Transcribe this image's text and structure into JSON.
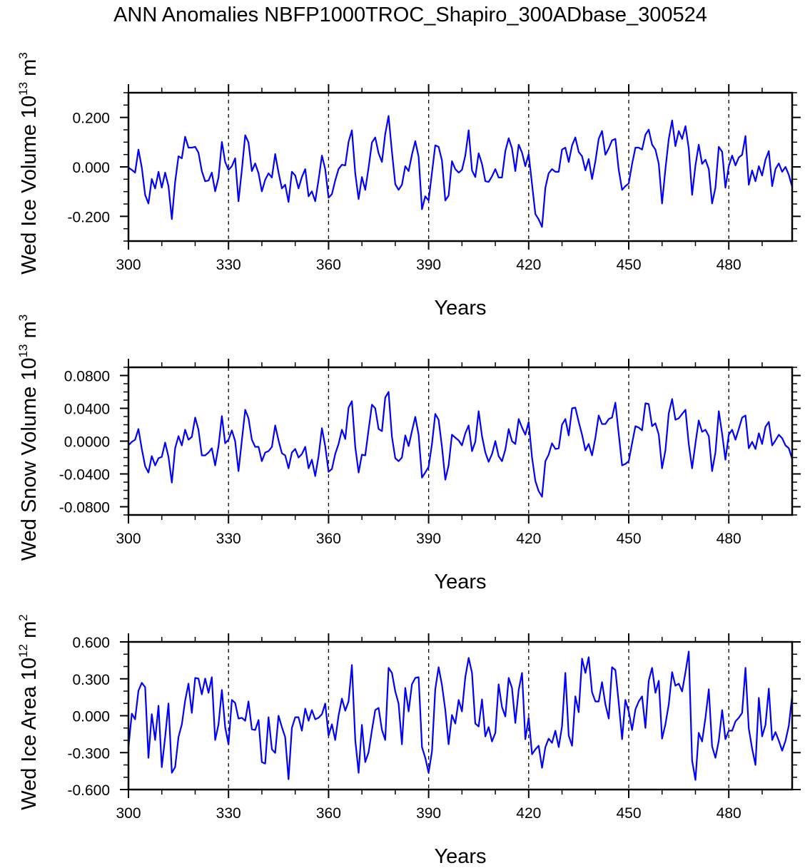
{
  "chart_data": [
    {
      "type": "line",
      "title": "ANN Anomalies NBFP1000TROC_Shapiro_300ADbase_300524",
      "xlabel": "Years",
      "ylabel": "Wed Ice Volume 10",
      "ylabel_exp": "13",
      "ylabel_unit": " m",
      "ylabel_unit_exp": "3",
      "xlim": [
        300,
        499
      ],
      "ylim": [
        -0.3,
        0.3
      ],
      "x_ticks": [
        300,
        330,
        360,
        390,
        420,
        450,
        480
      ],
      "x_tick_labels": [
        "300",
        "330",
        "360",
        "390",
        "420",
        "450",
        "480"
      ],
      "x_minor_step": 10,
      "y_ticks": [
        -0.2,
        0,
        0.2
      ],
      "y_tick_labels": [
        "-0.200",
        "0.000",
        "0.200"
      ],
      "y_minor_step": 0.05,
      "ref_lines_x": [
        330,
        360,
        390,
        420,
        450,
        480
      ],
      "line_color": "#0000ff",
      "x_start": 300,
      "values": [
        -0.003,
        -0.012,
        -0.023,
        0.07,
        -0.003,
        -0.113,
        -0.148,
        -0.049,
        -0.087,
        -0.02,
        -0.084,
        -0.023,
        -0.078,
        -0.211,
        -0.061,
        0.043,
        0.035,
        0.122,
        0.078,
        0.078,
        0.081,
        0.058,
        -0.017,
        -0.058,
        -0.055,
        -0.023,
        -0.099,
        -0.043,
        0.101,
        0.02,
        -0.012,
        0.003,
        0.035,
        -0.139,
        -0.012,
        0.128,
        0.099,
        -0.017,
        0.014,
        -0.026,
        -0.099,
        -0.052,
        -0.026,
        -0.043,
        0.052,
        -0.023,
        -0.087,
        -0.072,
        -0.142,
        -0.02,
        -0.035,
        -0.087,
        -0.041,
        -0.009,
        -0.119,
        -0.099,
        -0.139,
        -0.052,
        0.046,
        -0.009,
        -0.125,
        -0.11,
        -0.055,
        -0.009,
        0.009,
        0.006,
        0.101,
        0.148,
        -0.026,
        -0.13,
        -0.041,
        -0.093,
        -0.003,
        0.099,
        0.119,
        0.055,
        0.02,
        0.133,
        0.206,
        0.061,
        -0.07,
        -0.093,
        -0.072,
        0.003,
        -0.017,
        0.049,
        0.104,
        0.041,
        -0.171,
        -0.119,
        -0.136,
        -0.023,
        0.087,
        0.081,
        0.026,
        -0.136,
        -0.116,
        0.023,
        -0.009,
        -0.023,
        -0.012,
        0.046,
        0.148,
        -0.014,
        -0.041,
        0.055,
        0.012,
        -0.058,
        -0.061,
        -0.038,
        -0.009,
        -0.043,
        -0.043,
        0.064,
        0.116,
        0.075,
        -0.017,
        0.09,
        0.058,
        0.003,
        0.052,
        -0.07,
        -0.191,
        -0.212,
        -0.243,
        -0.084,
        -0.026,
        -0.009,
        -0.02,
        -0.02,
        0.07,
        0.078,
        0.02,
        0.087,
        0.119,
        0.061,
        0.043,
        -0.014,
        0.032,
        -0.049,
        0.023,
        0.113,
        0.145,
        0.049,
        0.075,
        0.107,
        0.113,
        -0.012,
        -0.093,
        -0.078,
        -0.067,
        0.012,
        0.078,
        0.078,
        0.07,
        0.13,
        0.151,
        0.09,
        0.07,
        0.012,
        -0.148,
        -0.009,
        0.113,
        0.188,
        0.084,
        0.145,
        0.113,
        0.165,
        0.075,
        -0.113,
        0.006,
        0.09,
        0.012,
        0.029,
        -0.009,
        -0.148,
        -0.084,
        0.081,
        0.061,
        -0.084,
        0.003,
        0.046,
        0.006,
        0.038,
        0.049,
        0.125,
        -0.072,
        -0.014,
        -0.058,
        0.003,
        -0.035,
        0.029,
        0.064,
        -0.078,
        -0.009,
        0.014,
        -0.02,
        0.0,
        -0.032,
        -0.081
      ]
    },
    {
      "type": "line",
      "xlabel": "Years",
      "ylabel": "Wed Snow Volume 10",
      "ylabel_exp": "13",
      "ylabel_unit": " m",
      "ylabel_unit_exp": "3",
      "xlim": [
        300,
        499
      ],
      "ylim": [
        -0.09,
        0.09
      ],
      "x_ticks": [
        300,
        330,
        360,
        390,
        420,
        450,
        480
      ],
      "x_tick_labels": [
        "300",
        "330",
        "360",
        "390",
        "420",
        "450",
        "480"
      ],
      "x_minor_step": 10,
      "y_ticks": [
        -0.08,
        -0.04,
        0,
        0.04,
        0.08
      ],
      "y_tick_labels": [
        "-0.0800",
        "-0.0400",
        "0.0000",
        "0.0400",
        "0.0800"
      ],
      "y_minor_step": 0.01,
      "ref_lines_x": [
        330,
        360,
        390,
        420,
        450,
        480
      ],
      "line_color": "#0000ff",
      "x_start": 300,
      "values": [
        -0.0052,
        -0.0009,
        0.0017,
        0.0148,
        -0.0096,
        -0.0305,
        -0.0383,
        -0.0183,
        -0.0296,
        -0.0209,
        -0.0191,
        -0.0017,
        -0.0191,
        -0.0505,
        -0.0087,
        0.0061,
        -0.0052,
        0.0139,
        0.0017,
        0.0052,
        0.0287,
        0.0139,
        -0.0174,
        -0.0174,
        -0.0139,
        -0.0087,
        -0.0296,
        -0.0061,
        0.0305,
        -0.0026,
        0.0017,
        0.0131,
        0.0,
        -0.0365,
        0.0009,
        0.0383,
        0.0278,
        0.0017,
        -0.007,
        -0.007,
        -0.0244,
        -0.0139,
        -0.0122,
        -0.007,
        0.0191,
        0.0009,
        -0.0148,
        -0.0174,
        -0.0331,
        -0.0139,
        -0.0096,
        -0.02,
        -0.0157,
        -0.007,
        -0.0331,
        -0.0226,
        -0.0426,
        -0.0183,
        0.0157,
        -0.0061,
        -0.0374,
        -0.0339,
        -0.0157,
        -0.0035,
        0.0139,
        0.0026,
        0.0409,
        0.0487,
        -0.007,
        -0.0383,
        -0.0165,
        -0.0174,
        0.0139,
        0.0444,
        0.04,
        0.0148,
        0.0122,
        0.0531,
        0.06,
        0.0052,
        -0.0209,
        -0.0244,
        -0.02,
        0.007,
        -0.0061,
        0.0122,
        0.0296,
        0.0078,
        -0.0444,
        -0.0383,
        -0.0313,
        -0.0035,
        0.0331,
        0.0261,
        -0.007,
        -0.047,
        -0.0296,
        0.0078,
        0.0043,
        0.0009,
        -0.0052,
        0.0096,
        0.0191,
        -0.0122,
        -0.0009,
        0.0365,
        0.0061,
        -0.0139,
        -0.0252,
        -0.0157,
        0.0,
        -0.0183,
        -0.0244,
        -0.0104,
        0.0148,
        0.0,
        -0.0035,
        0.027,
        0.0165,
        0.0078,
        0.0235,
        -0.02,
        -0.0487,
        -0.0609,
        -0.0678,
        -0.0244,
        -0.0165,
        -0.0026,
        -0.0096,
        -0.0087,
        0.02,
        0.027,
        0.007,
        0.04,
        0.0409,
        0.0235,
        0.0078,
        -0.0113,
        -0.0035,
        -0.0174,
        0.0043,
        0.0313,
        0.0209,
        0.0209,
        0.027,
        0.0287,
        0.047,
        0.0087,
        -0.0296,
        -0.0278,
        -0.0244,
        -0.0026,
        0.0183,
        0.0165,
        0.0131,
        0.0461,
        0.0452,
        0.0183,
        0.0217,
        0.0078,
        -0.0331,
        -0.0113,
        0.0339,
        0.0513,
        0.0261,
        0.0278,
        0.0331,
        0.0383,
        -0.0035,
        -0.0331,
        -0.0026,
        0.0252,
        0.0113,
        0.0139,
        0.0061,
        -0.0365,
        -0.0139,
        0.0365,
        0.0087,
        -0.0226,
        0.0078,
        0.0139,
        0.0017,
        0.0148,
        0.0287,
        0.0313,
        -0.0087,
        -0.0009,
        -0.0096,
        0.0096,
        -0.0035,
        0.0174,
        0.0235,
        -0.0052,
        0.0009,
        0.0078,
        0.0035,
        -0.0052,
        -0.0087,
        -0.0217
      ]
    },
    {
      "type": "line",
      "xlabel": "Years",
      "ylabel": "Wed Ice Area 10",
      "ylabel_exp": "12",
      "ylabel_unit": " m",
      "ylabel_unit_exp": "2",
      "xlim": [
        300,
        499
      ],
      "ylim": [
        -0.6,
        0.6
      ],
      "x_ticks": [
        300,
        330,
        360,
        390,
        420,
        450,
        480
      ],
      "x_tick_labels": [
        "300",
        "330",
        "360",
        "390",
        "420",
        "450",
        "480"
      ],
      "x_minor_step": 10,
      "y_ticks": [
        -0.6,
        -0.3,
        0,
        0.3,
        0.6
      ],
      "y_tick_labels": [
        "-0.600",
        "-0.300",
        "0.000",
        "0.300",
        "0.600"
      ],
      "y_minor_step": 0.1,
      "ref_lines_x": [
        330,
        360,
        390,
        420,
        450,
        480
      ],
      "line_color": "#0000ff",
      "x_start": 300,
      "values": [
        -0.255,
        0.017,
        -0.029,
        0.203,
        0.267,
        0.232,
        -0.342,
        0.012,
        -0.197,
        0.081,
        -0.418,
        -0.174,
        0.099,
        -0.464,
        -0.418,
        -0.174,
        -0.07,
        0.122,
        0.261,
        0.023,
        0.307,
        0.302,
        0.174,
        0.302,
        0.186,
        0.313,
        -0.197,
        -0.07,
        0.209,
        -0.093,
        -0.232,
        0.128,
        0.104,
        -0.023,
        -0.017,
        -0.041,
        0.116,
        -0.11,
        -0.116,
        -0.035,
        -0.377,
        -0.389,
        -0.012,
        -0.273,
        -0.302,
        0.0,
        -0.093,
        -0.174,
        -0.516,
        -0.099,
        -0.012,
        -0.012,
        -0.122,
        0.058,
        -0.041,
        0.046,
        -0.029,
        -0.017,
        0.012,
        0.099,
        -0.162,
        -0.07,
        -0.197,
        0.0,
        0.139,
        0.041,
        0.116,
        0.412,
        -0.197,
        -0.464,
        -0.075,
        -0.377,
        -0.296,
        -0.116,
        0.046,
        0.064,
        -0.116,
        -0.197,
        0.389,
        0.348,
        0.197,
        0.099,
        -0.232,
        0.226,
        0.035,
        0.255,
        0.307,
        0.313,
        -0.255,
        -0.342,
        -0.464,
        -0.29,
        0.215,
        0.394,
        0.249,
        0.046,
        -0.232,
        0.006,
        -0.064,
        0.128,
        0.035,
        0.313,
        0.47,
        0.348,
        -0.064,
        -0.087,
        0.133,
        -0.168,
        -0.093,
        -0.209,
        -0.139,
        0.255,
        0.07,
        -0.006,
        0.307,
        0.226,
        -0.058,
        0.209,
        0.348,
        -0.191,
        -0.017,
        -0.313,
        -0.273,
        -0.244,
        -0.423,
        -0.255,
        -0.186,
        -0.22,
        -0.122,
        -0.255,
        -0.087,
        0.348,
        -0.162,
        -0.244,
        0.157,
        0.029,
        0.464,
        0.348,
        0.476,
        0.191,
        0.116,
        0.116,
        0.273,
        0.093,
        -0.023,
        0.394,
        0.371,
        0.104,
        -0.191,
        0.128,
        0.035,
        -0.116,
        0.052,
        0.116,
        0.157,
        -0.099,
        0.284,
        0.389,
        0.186,
        0.284,
        -0.186,
        -0.07,
        0.093,
        0.354,
        0.244,
        0.261,
        0.197,
        0.354,
        0.522,
        -0.365,
        -0.522,
        -0.139,
        -0.209,
        -0.017,
        0.215,
        -0.249,
        -0.342,
        -0.203,
        0.046,
        -0.191,
        -0.122,
        -0.122,
        -0.046,
        -0.017,
        0.023,
        0.389,
        -0.104,
        -0.267,
        -0.4,
        0.145,
        -0.168,
        -0.075,
        0.22,
        -0.197,
        -0.133,
        -0.203,
        -0.284,
        -0.203,
        -0.081,
        0.162
      ]
    }
  ]
}
